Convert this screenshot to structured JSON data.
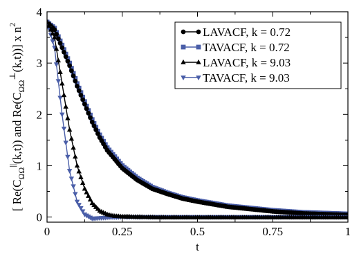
{
  "chart_data": {
    "type": "line",
    "xlabel": "t",
    "ylabel_parts": {
      "open": "[ Re(C",
      "sub1": "ΩΩ",
      "sup1": "||",
      "mid": "(k,t)) and Re(C",
      "sub2": "ΩΩ",
      "sup2": "⊥",
      "close": "(k,t))] x n",
      "sup3": "2"
    },
    "xlim": [
      0,
      1
    ],
    "ylim": [
      -0.1,
      4
    ],
    "x_ticks": [
      0,
      0.25,
      0.5,
      0.75,
      1
    ],
    "x_tick_labels": [
      "0",
      "0.25",
      "0.5",
      "0.75",
      "1"
    ],
    "y_ticks": [
      0,
      1,
      2,
      3,
      4
    ],
    "y_tick_labels": [
      "0",
      "1",
      "2",
      "3",
      "4"
    ],
    "grid": false,
    "legend_placement": "top-right",
    "series": [
      {
        "name": "LAVACF, k = 0.72",
        "color": "#000000",
        "marker": "circle",
        "x": [
          0,
          0.025,
          0.05,
          0.075,
          0.1,
          0.125,
          0.15,
          0.175,
          0.2,
          0.25,
          0.3,
          0.35,
          0.4,
          0.45,
          0.5,
          0.55,
          0.6,
          0.65,
          0.7,
          0.75,
          0.8,
          0.85,
          0.9,
          0.95,
          1.0
        ],
        "values": [
          3.8,
          3.65,
          3.3,
          2.95,
          2.55,
          2.2,
          1.85,
          1.55,
          1.3,
          0.95,
          0.72,
          0.55,
          0.45,
          0.36,
          0.3,
          0.25,
          0.2,
          0.17,
          0.14,
          0.11,
          0.09,
          0.07,
          0.06,
          0.05,
          0.04
        ]
      },
      {
        "name": "TAVACF, k = 0.72",
        "color": "#4a5ea8",
        "marker": "square",
        "x": [
          0,
          0.025,
          0.05,
          0.075,
          0.1,
          0.125,
          0.15,
          0.175,
          0.2,
          0.25,
          0.3,
          0.35,
          0.4,
          0.45,
          0.5,
          0.55,
          0.6,
          0.65,
          0.7,
          0.75,
          0.8,
          0.85,
          0.9,
          0.95,
          1.0
        ],
        "values": [
          3.8,
          3.68,
          3.35,
          3.0,
          2.6,
          2.25,
          1.9,
          1.6,
          1.35,
          1.0,
          0.76,
          0.58,
          0.47,
          0.38,
          0.32,
          0.27,
          0.22,
          0.19,
          0.16,
          0.13,
          0.11,
          0.09,
          0.08,
          0.07,
          0.06
        ]
      },
      {
        "name": "LAVACF, k = 9.03",
        "color": "#000000",
        "marker": "triangle-up",
        "x": [
          0,
          0.025,
          0.05,
          0.075,
          0.1,
          0.125,
          0.15,
          0.175,
          0.2,
          0.225,
          0.25,
          0.3,
          0.4,
          0.5,
          0.6,
          0.7,
          0.8,
          0.9,
          1.0
        ],
        "values": [
          3.8,
          3.5,
          2.6,
          1.7,
          1.0,
          0.55,
          0.27,
          0.12,
          0.05,
          0.02,
          0.01,
          0.0,
          -0.01,
          -0.01,
          -0.01,
          -0.01,
          -0.01,
          -0.01,
          -0.01
        ]
      },
      {
        "name": "TAVACF, k = 9.03",
        "color": "#4a5ea8",
        "marker": "triangle-down",
        "x": [
          0,
          0.025,
          0.05,
          0.075,
          0.1,
          0.125,
          0.15,
          0.175,
          0.2,
          0.25,
          0.3,
          0.4,
          0.5,
          0.6,
          0.7,
          0.8,
          0.9,
          1.0
        ],
        "values": [
          3.8,
          3.3,
          2.0,
          0.9,
          0.3,
          0.05,
          -0.03,
          -0.02,
          -0.01,
          0.0,
          0.0,
          0.0,
          0.0,
          0.0,
          0.0,
          0.0,
          0.0,
          0.0
        ]
      }
    ]
  }
}
